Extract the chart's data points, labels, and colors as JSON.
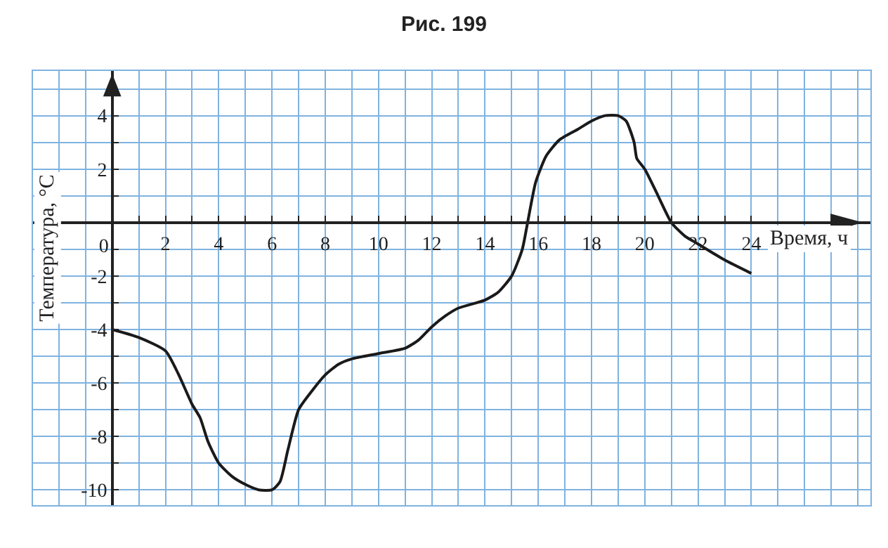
{
  "chart_data": {
    "type": "line",
    "title": "Рис. 199",
    "xlabel": "Время, ч",
    "ylabel": "Температура, °С",
    "x": [
      0,
      1,
      2,
      2.5,
      3,
      3.3,
      3.6,
      4,
      4.5,
      5,
      5.5,
      6,
      6.3,
      6.6,
      7,
      7.5,
      8,
      8.5,
      9,
      10,
      11,
      11.5,
      12,
      12.5,
      13,
      14,
      14.5,
      15,
      15.4,
      15.6,
      15.9,
      16.3,
      16.8,
      17.5,
      18,
      18.5,
      19,
      19.3,
      19.6,
      19.7,
      20,
      20.5,
      21,
      21.5,
      22,
      23,
      24
    ],
    "series": [
      {
        "color": "#1a1a1a",
        "values": [
          -4,
          -4.3,
          -4.8,
          -5.7,
          -6.8,
          -7.3,
          -8.2,
          -9,
          -9.5,
          -9.8,
          -10,
          -10,
          -9.7,
          -8.5,
          -7,
          -6.3,
          -5.7,
          -5.3,
          -5.1,
          -4.9,
          -4.7,
          -4.4,
          -3.9,
          -3.5,
          -3.2,
          -2.9,
          -2.6,
          -2,
          -1,
          0,
          1.5,
          2.5,
          3.1,
          3.5,
          3.8,
          4,
          4,
          3.8,
          3,
          2.4,
          2,
          1,
          0,
          -0.5,
          -0.8,
          -1.4,
          -1.9
        ]
      }
    ],
    "xlim": [
      -3,
      28.5
    ],
    "ylim": [
      -10.6,
      5.7
    ],
    "xticks": [
      {
        "value": 0,
        "label": "0"
      },
      {
        "value": 1,
        "label": null
      },
      2,
      {
        "value": 3,
        "label": null
      },
      4,
      {
        "value": 5,
        "label": null
      },
      6,
      {
        "value": 7,
        "label": null
      },
      8,
      {
        "value": 9,
        "label": null
      },
      10,
      {
        "value": 11,
        "label": null
      },
      12,
      {
        "value": 13,
        "label": null
      },
      14,
      {
        "value": 15,
        "label": null
      },
      16,
      {
        "value": 17,
        "label": null
      },
      18,
      {
        "value": 19,
        "label": null
      },
      20,
      {
        "value": 21,
        "label": null
      },
      22,
      {
        "value": 23,
        "label": null
      },
      24
    ],
    "yticks": [
      -10,
      {
        "value": -9,
        "label": null
      },
      -8,
      {
        "value": -7,
        "label": null
      },
      -6,
      {
        "value": -5,
        "label": null
      },
      -4,
      {
        "value": -3,
        "label": null
      },
      -2,
      {
        "value": -1,
        "label": null
      },
      {
        "value": 1,
        "label": null
      },
      2,
      {
        "value": 3,
        "label": null
      },
      4
    ],
    "grid": true,
    "legend": false,
    "line_style": "solid",
    "marker": "none"
  }
}
